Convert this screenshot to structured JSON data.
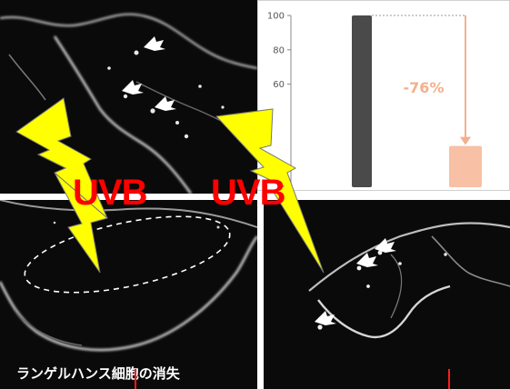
{
  "labels": {
    "uvb_left": "UVB",
    "uvb_right": "UVB",
    "caption": "ランゲルハンス細胞の消失"
  },
  "chart_data": {
    "type": "bar",
    "categories": [
      "",
      ""
    ],
    "values": [
      100,
      24
    ],
    "ylim": [
      0,
      100
    ],
    "yticks": [
      60,
      80,
      100
    ],
    "annotation": "-76%",
    "bar_colors": [
      "#4a4a4a",
      "#f8c0a4"
    ],
    "annotation_color": "#f4b08c"
  }
}
